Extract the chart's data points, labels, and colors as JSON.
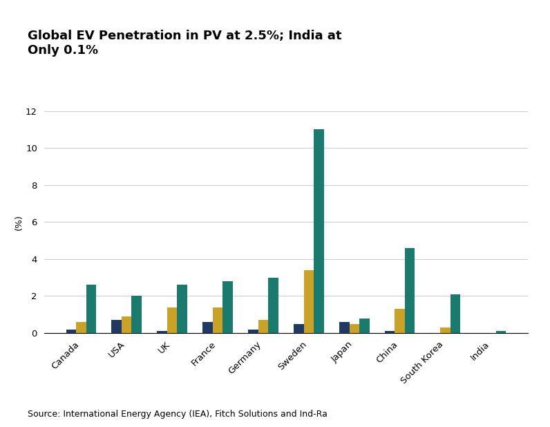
{
  "title": "Global EV Penetration in PV at 2.5%; India at\nOnly 0.1%",
  "ylabel": "(%)",
  "source": "Source: International Energy Agency (IEA), Fitch Solutions and Ind-Ra",
  "categories": [
    "Canada",
    "USA",
    "UK",
    "France",
    "Germany",
    "Sweden",
    "Japan",
    "China",
    "South Korea",
    "India"
  ],
  "series": {
    "2013": [
      0.2,
      0.7,
      0.1,
      0.6,
      0.2,
      0.5,
      0.6,
      0.1,
      0.0,
      0.0
    ],
    "2016": [
      0.6,
      0.9,
      1.4,
      1.4,
      0.7,
      3.4,
      0.5,
      1.3,
      0.3,
      0.0
    ],
    "2019": [
      2.6,
      2.0,
      2.6,
      2.8,
      3.0,
      11.0,
      0.8,
      4.6,
      2.1,
      0.1
    ]
  },
  "colors": {
    "2013": "#1f3864",
    "2016": "#c9a227",
    "2019": "#1a7a6e"
  },
  "ylim": [
    0,
    12
  ],
  "yticks": [
    0,
    2,
    4,
    6,
    8,
    10,
    12
  ],
  "bar_width": 0.22,
  "background_color": "#ffffff",
  "grid_color": "#cccccc",
  "title_fontsize": 13,
  "axis_fontsize": 9.5,
  "legend_fontsize": 9.5,
  "source_fontsize": 9
}
